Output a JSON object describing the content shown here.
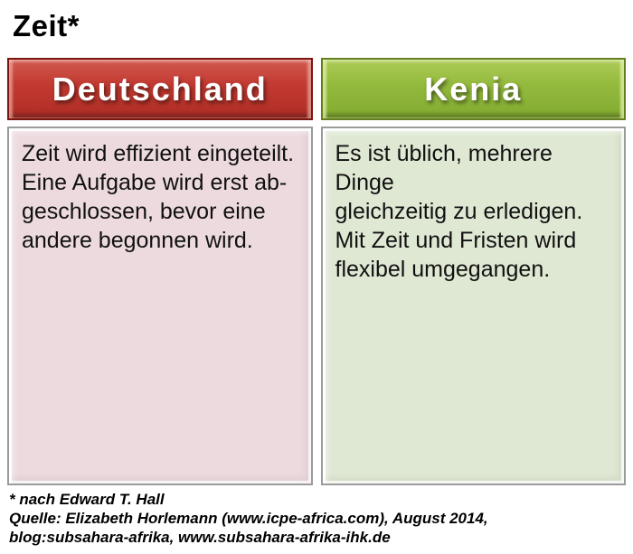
{
  "title": "Zeit*",
  "columns": [
    {
      "key": "deutschland",
      "header": "Deutschland",
      "header_color": "#c23a31",
      "header_border_color": "#7c150e",
      "body_color": "#ecdade",
      "lines": [
        "Zeit wird effizient eingeteilt.",
        "Eine Aufgabe wird erst ab-",
        "geschlossen, bevor eine",
        "andere begonnen wird."
      ]
    },
    {
      "key": "kenia",
      "header": "Kenia",
      "header_color": "#93ba3d",
      "header_border_color": "#647f20",
      "body_color": "#dfe8d3",
      "lines": [
        "Es ist üblich, mehrere Dinge",
        "gleichzeitig zu erledigen.",
        "Mit Zeit und Fristen wird",
        "flexibel umgegangen."
      ]
    }
  ],
  "footer": {
    "lines": [
      "* nach Edward T. Hall",
      "Quelle: Elizabeth Horlemann (www.icpe-africa.com), August 2014,",
      "blog:subsahara-afrika, www.subsahara-afrika-ihk.de"
    ]
  }
}
